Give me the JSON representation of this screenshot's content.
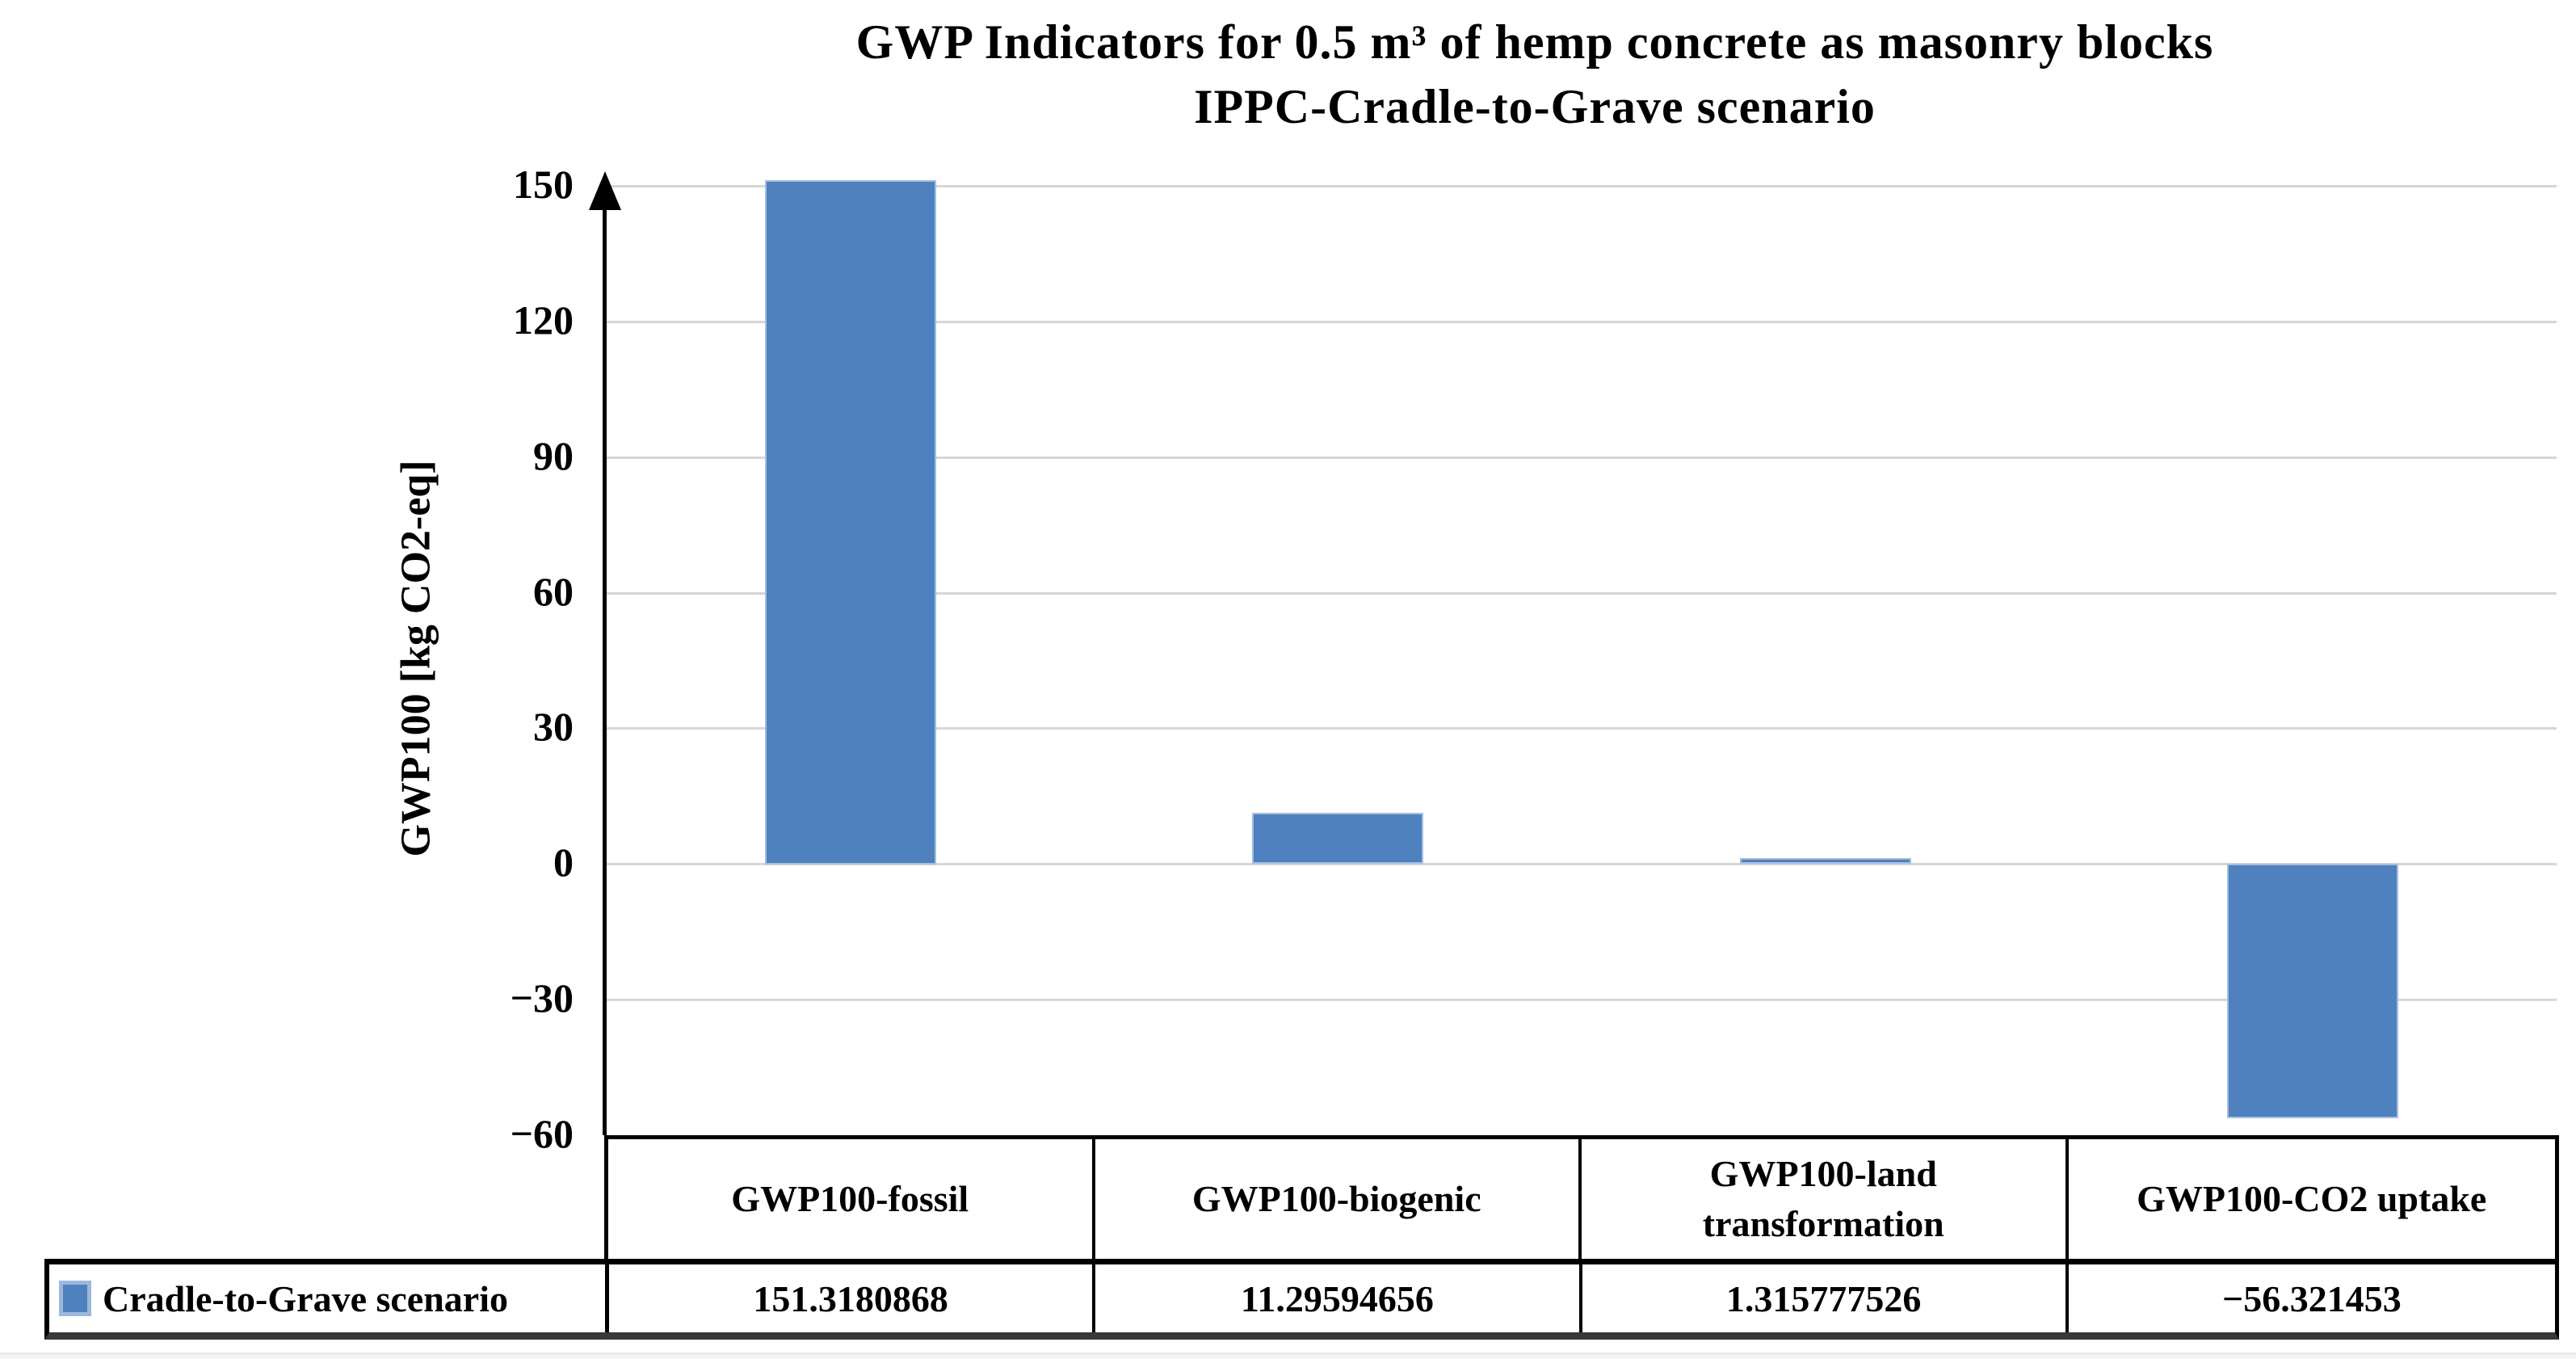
{
  "chart_data": {
    "type": "bar",
    "title_line1": "GWP Indicators for 0.5 m³ of hemp concrete as masonry blocks",
    "title_line2": "IPPC-Cradle-to-Grave scenario",
    "ylabel": "GWP100 [kg CO2-eq]",
    "categories": [
      "GWP100-fossil",
      "GWP100-biogenic",
      "GWP100-land transformation",
      "GWP100-CO2 uptake"
    ],
    "series": [
      {
        "name": "Cradle-to-Grave scenario",
        "values": [
          151.3180868,
          11.29594656,
          1.315777526,
          -56.321453
        ]
      }
    ],
    "values_display": [
      "151.3180868",
      "11.29594656",
      "1.315777526",
      "−56.321453"
    ],
    "ylim": [
      -60,
      150
    ],
    "ytick_step": 30,
    "ticks": [
      150,
      120,
      90,
      60,
      30,
      0,
      -30,
      -60
    ],
    "grid": true,
    "legend_position": "bottom-left-table-key",
    "bar_color": "#4E81BD",
    "bar_border_color": "#A3BEDF",
    "gridline_color": "#D6D6D6",
    "axis_color": "#000000"
  }
}
